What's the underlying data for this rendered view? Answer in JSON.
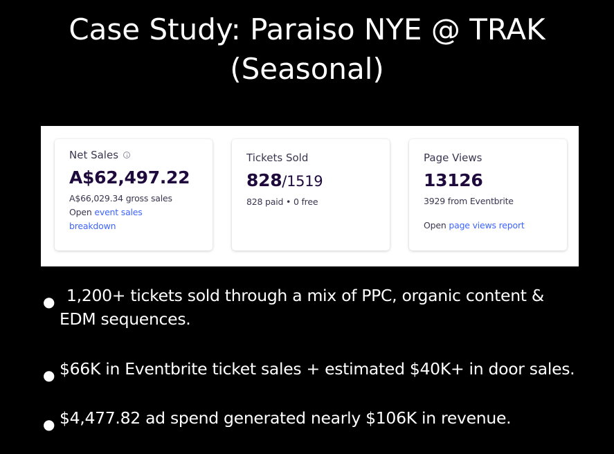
{
  "slide": {
    "title_line1": "Case Study: Paraiso NYE @ TRAK",
    "title_line2": "(Seasonal)"
  },
  "dashboard": {
    "net_sales": {
      "label": "Net Sales",
      "value": "A$62,497.22",
      "gross": "A$66,029.34 gross sales",
      "open_prefix": "Open ",
      "link_part1": "event sales",
      "link_part2": "breakdown"
    },
    "tickets_sold": {
      "label": "Tickets Sold",
      "value": "828",
      "denominator": "/1519",
      "sub": "828 paid • 0 free"
    },
    "page_views": {
      "label": "Page Views",
      "value": "13126",
      "sub": "3929 from Eventbrite",
      "open_prefix": "Open ",
      "link": "page views report"
    }
  },
  "bullets": [
    "1,200+ tickets sold through a mix of PPC, organic content &",
    "EDM sequences.",
    "$66K in Eventbrite ticket sales + estimated $40K+ in door sales.",
    "$4,477.82 ad spend generated nearly $106K in revenue."
  ],
  "colors": {
    "background": "#000000",
    "text": "#ffffff",
    "card_value": "#1e0a3c",
    "link": "#3d64ff"
  },
  "icons": {
    "net_sales_info": "info-icon",
    "bullet": "bullet-dot"
  }
}
